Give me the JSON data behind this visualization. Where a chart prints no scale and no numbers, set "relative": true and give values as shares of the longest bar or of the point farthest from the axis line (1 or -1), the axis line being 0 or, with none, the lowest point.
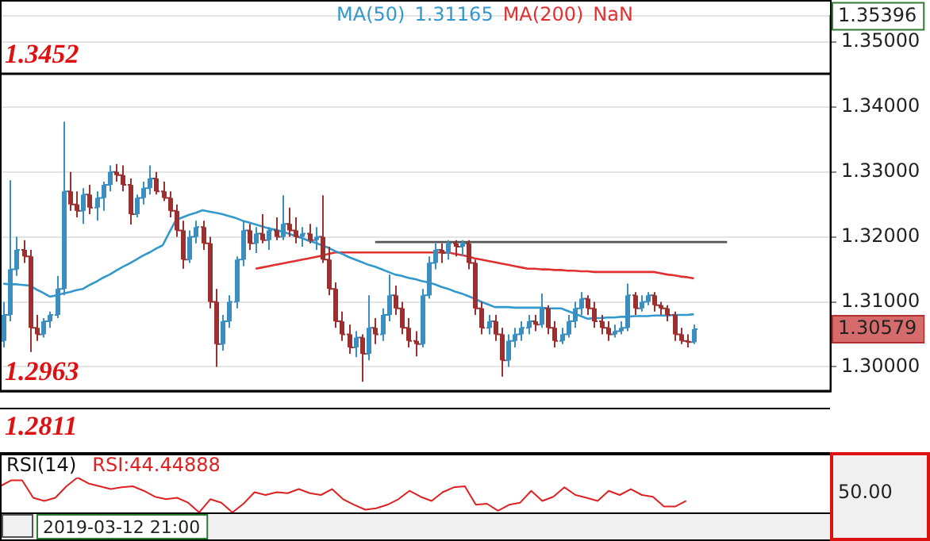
{
  "chart_data": [
    {
      "type": "candlestick",
      "categories": [
        null,
        null,
        null,
        null,
        null,
        null,
        null,
        null,
        null,
        null,
        null,
        null,
        null,
        null,
        null,
        null,
        null,
        null,
        null,
        null,
        null,
        null,
        null,
        null,
        null,
        null,
        null,
        null,
        null,
        null,
        null,
        null,
        null,
        null,
        null,
        null,
        null,
        null,
        null,
        null,
        null,
        null,
        null,
        null,
        null,
        null,
        null,
        null,
        null,
        null,
        null,
        null,
        null,
        null,
        null,
        null,
        null,
        null,
        null,
        null,
        null,
        null,
        null,
        null,
        null,
        null,
        null,
        null,
        null,
        null,
        null,
        null,
        null,
        null,
        null,
        null,
        null,
        null,
        null,
        null,
        null,
        null,
        null,
        null,
        null,
        null,
        null,
        null,
        null,
        null,
        null,
        null,
        null,
        null,
        null,
        null,
        null,
        null,
        null,
        null,
        null,
        null,
        null,
        null,
        null,
        null,
        null,
        null,
        null,
        null,
        null,
        null,
        null,
        null,
        null,
        null,
        null,
        null,
        null,
        null,
        null,
        null,
        null,
        null,
        null
      ],
      "ohlc": [
        [
          1.304,
          1.31,
          1.303,
          1.308
        ],
        [
          1.308,
          1.3287,
          1.307,
          1.315
        ],
        [
          1.315,
          1.32,
          1.314,
          1.318
        ],
        [
          1.318,
          1.3195,
          1.316,
          1.317
        ],
        [
          1.317,
          1.318,
          1.3023,
          1.306
        ],
        [
          1.306,
          1.308,
          1.304,
          1.305
        ],
        [
          1.305,
          1.3075,
          1.3045,
          1.307
        ],
        [
          1.307,
          1.3085,
          1.306,
          1.308
        ],
        [
          1.308,
          1.314,
          1.3075,
          1.312
        ],
        [
          1.312,
          1.3377,
          1.311,
          1.327
        ],
        [
          1.327,
          1.33,
          1.324,
          1.325
        ],
        [
          1.325,
          1.327,
          1.323,
          1.324
        ],
        [
          1.324,
          1.3275,
          1.322,
          1.3265
        ],
        [
          1.3265,
          1.328,
          1.3235,
          1.3245
        ],
        [
          1.3245,
          1.327,
          1.3225,
          1.326
        ],
        [
          1.326,
          1.3285,
          1.324,
          1.328
        ],
        [
          1.328,
          1.331,
          1.327,
          1.33
        ],
        [
          1.33,
          1.3312,
          1.3285,
          1.3295
        ],
        [
          1.3295,
          1.331,
          1.327,
          1.328
        ],
        [
          1.328,
          1.329,
          1.3219,
          1.3235
        ],
        [
          1.3235,
          1.3265,
          1.323,
          1.326
        ],
        [
          1.326,
          1.3285,
          1.325,
          1.3275
        ],
        [
          1.3275,
          1.331,
          1.3265,
          1.329
        ],
        [
          1.329,
          1.33,
          1.3265,
          1.327
        ],
        [
          1.327,
          1.3285,
          1.3255,
          1.326
        ],
        [
          1.326,
          1.327,
          1.323,
          1.324
        ],
        [
          1.324,
          1.325,
          1.32,
          1.321
        ],
        [
          1.321,
          1.3225,
          1.3151,
          1.3165
        ],
        [
          1.3165,
          1.321,
          1.316,
          1.32
        ],
        [
          1.32,
          1.3225,
          1.319,
          1.3215
        ],
        [
          1.3215,
          1.3225,
          1.318,
          1.319
        ],
        [
          1.319,
          1.32,
          1.309,
          1.31
        ],
        [
          1.31,
          1.312,
          1.3,
          1.3035
        ],
        [
          1.3035,
          1.308,
          1.3025,
          1.307
        ],
        [
          1.307,
          1.311,
          1.306,
          1.31
        ],
        [
          1.31,
          1.317,
          1.309,
          1.3165
        ],
        [
          1.3165,
          1.3225,
          1.3155,
          1.321
        ],
        [
          1.321,
          1.322,
          1.318,
          1.319
        ],
        [
          1.319,
          1.3215,
          1.3175,
          1.3205
        ],
        [
          1.3205,
          1.3235,
          1.319,
          1.3195
        ],
        [
          1.3195,
          1.3215,
          1.318,
          1.321
        ],
        [
          1.321,
          1.323,
          1.3195,
          1.32
        ],
        [
          1.32,
          1.3264,
          1.3195,
          1.322
        ],
        [
          1.322,
          1.3245,
          1.32,
          1.321
        ],
        [
          1.321,
          1.323,
          1.319,
          1.32
        ],
        [
          1.32,
          1.3215,
          1.3185,
          1.3205
        ],
        [
          1.3205,
          1.322,
          1.319,
          1.3195
        ],
        [
          1.3195,
          1.3215,
          1.318,
          1.32
        ],
        [
          1.32,
          1.3264,
          1.316,
          1.3165
        ],
        [
          1.3165,
          1.3185,
          1.311,
          1.312
        ],
        [
          1.312,
          1.313,
          1.306,
          1.307
        ],
        [
          1.307,
          1.3085,
          1.304,
          1.305
        ],
        [
          1.305,
          1.3065,
          1.302,
          1.303
        ],
        [
          1.303,
          1.3055,
          1.3015,
          1.3045
        ],
        [
          1.3045,
          1.305,
          1.2977,
          1.302
        ],
        [
          1.302,
          1.311,
          1.301,
          1.306
        ],
        [
          1.306,
          1.3075,
          1.3035,
          1.305
        ],
        [
          1.305,
          1.309,
          1.304,
          1.308
        ],
        [
          1.308,
          1.3142,
          1.307,
          1.311
        ],
        [
          1.311,
          1.3125,
          1.308,
          1.309
        ],
        [
          1.309,
          1.31,
          1.305,
          1.306
        ],
        [
          1.306,
          1.3075,
          1.303,
          1.304
        ],
        [
          1.304,
          1.3055,
          1.3016,
          1.3035
        ],
        [
          1.3035,
          1.312,
          1.303,
          1.311
        ],
        [
          1.311,
          1.317,
          1.3105,
          1.316
        ],
        [
          1.316,
          1.319,
          1.315,
          1.318
        ],
        [
          1.318,
          1.319,
          1.316,
          1.3175
        ],
        [
          1.3175,
          1.3195,
          1.3165,
          1.319
        ],
        [
          1.319,
          1.3195,
          1.317,
          1.3185
        ],
        [
          1.3185,
          1.3195,
          1.317,
          1.319
        ],
        [
          1.319,
          1.3195,
          1.315,
          1.316
        ],
        [
          1.316,
          1.3165,
          1.308,
          1.309
        ],
        [
          1.309,
          1.31,
          1.305,
          1.306
        ],
        [
          1.306,
          1.308,
          1.305,
          1.307
        ],
        [
          1.307,
          1.308,
          1.304,
          1.305
        ],
        [
          1.305,
          1.306,
          1.2985,
          1.301
        ],
        [
          1.301,
          1.305,
          1.3,
          1.304
        ],
        [
          1.304,
          1.306,
          1.303,
          1.305
        ],
        [
          1.305,
          1.307,
          1.304,
          1.306
        ],
        [
          1.306,
          1.308,
          1.305,
          1.307
        ],
        [
          1.307,
          1.308,
          1.3055,
          1.3065
        ],
        [
          1.3065,
          1.3113,
          1.306,
          1.309
        ],
        [
          1.309,
          1.3095,
          1.305,
          1.306
        ],
        [
          1.306,
          1.307,
          1.303,
          1.304
        ],
        [
          1.304,
          1.306,
          1.3035,
          1.305
        ],
        [
          1.305,
          1.308,
          1.3045,
          1.307
        ],
        [
          1.307,
          1.31,
          1.306,
          1.309
        ],
        [
          1.309,
          1.3115,
          1.308,
          1.3105
        ],
        [
          1.3105,
          1.311,
          1.308,
          1.309
        ],
        [
          1.309,
          1.31,
          1.306,
          1.307
        ],
        [
          1.307,
          1.308,
          1.305,
          1.306
        ],
        [
          1.306,
          1.307,
          1.304,
          1.305
        ],
        [
          1.305,
          1.3065,
          1.3045,
          1.3055
        ],
        [
          1.3055,
          1.307,
          1.305,
          1.306
        ],
        [
          1.306,
          1.3128,
          1.3055,
          1.311
        ],
        [
          1.311,
          1.3115,
          1.308,
          1.309
        ],
        [
          1.309,
          1.311,
          1.3085,
          1.31
        ],
        [
          1.31,
          1.3115,
          1.3095,
          1.311
        ],
        [
          1.311,
          1.3115,
          1.3085,
          1.3095
        ],
        [
          1.3095,
          1.31,
          1.308,
          1.309
        ],
        [
          1.309,
          1.3095,
          1.307,
          1.308
        ],
        [
          1.308,
          1.3085,
          1.304,
          1.305
        ],
        [
          1.305,
          1.306,
          1.3035,
          1.304
        ],
        [
          1.304,
          1.305,
          1.303,
          1.3038
        ],
        [
          1.3038,
          1.3065,
          1.3035,
          1.3058
        ],
        null,
        null,
        null,
        null,
        null,
        null,
        null,
        null,
        null,
        null,
        null,
        null,
        null,
        null,
        null,
        null,
        null,
        null,
        null,
        null
      ],
      "colors": [
        "#3a8fc0",
        "#3a8fc0",
        "#3a8fc0",
        "#9a3030",
        "#9a3030",
        "#9a3030",
        "#3a8fc0",
        "#3a8fc0",
        "#3a8fc0",
        "#3a8fc0",
        "#9a3030",
        "#9a3030",
        "#3a8fc0",
        "#9a3030",
        "#3a8fc0",
        "#3a8fc0",
        "#3a8fc0",
        "#9a3030",
        "#9a3030",
        "#9a3030",
        "#3a8fc0",
        "#3a8fc0",
        "#3a8fc0",
        "#9a3030",
        "#9a3030",
        "#9a3030",
        "#9a3030",
        "#9a3030",
        "#3a8fc0",
        "#3a8fc0",
        "#9a3030",
        "#9a3030",
        "#9a3030",
        "#3a8fc0",
        "#3a8fc0",
        "#3a8fc0",
        "#3a8fc0",
        "#9a3030",
        "#3a8fc0",
        "#9a3030",
        "#3a8fc0",
        "#9a3030",
        "#3a8fc0",
        "#9a3030",
        "#9a3030",
        "#3a8fc0",
        "#9a3030",
        "#3a8fc0",
        "#9a3030",
        "#9a3030",
        "#9a3030",
        "#9a3030",
        "#9a3030",
        "#3a8fc0",
        "#9a3030",
        "#3a8fc0",
        "#9a3030",
        "#3a8fc0",
        "#3a8fc0",
        "#9a3030",
        "#9a3030",
        "#9a3030",
        "#9a3030",
        "#3a8fc0",
        "#3a8fc0",
        "#3a8fc0",
        "#9a3030",
        "#3a8fc0",
        "#9a3030",
        "#3a8fc0",
        "#9a3030",
        "#9a3030",
        "#9a3030",
        "#3a8fc0",
        "#9a3030",
        "#9a3030",
        "#3a8fc0",
        "#3a8fc0",
        "#3a8fc0",
        "#3a8fc0",
        "#9a3030",
        "#3a8fc0",
        "#9a3030",
        "#9a3030",
        "#3a8fc0",
        "#3a8fc0",
        "#3a8fc0",
        "#3a8fc0",
        "#9a3030",
        "#9a3030",
        "#9a3030",
        "#9a3030",
        "#3a8fc0",
        "#3a8fc0",
        "#3a8fc0",
        "#9a3030",
        "#3a8fc0",
        "#3a8fc0",
        "#9a3030",
        "#9a3030",
        "#9a3030",
        "#9a3030",
        "#9a3030",
        "#9a3030",
        "#3a8fc0",
        null,
        null,
        null,
        null,
        null,
        null,
        null,
        null,
        null,
        null,
        null,
        null,
        null,
        null,
        null,
        null,
        null,
        null,
        null,
        null
      ],
      "series": [
        {
          "type": "line",
          "name": "MA(50)",
          "color": "#3399cc",
          "values": [
            1.3128,
            1.3127,
            1.3127,
            1.3126,
            1.3125,
            1.3119,
            1.3114,
            1.3108,
            1.311,
            1.3113,
            1.3115,
            1.3118,
            1.312,
            1.3126,
            1.3131,
            1.3137,
            1.3142,
            1.3148,
            1.3154,
            1.3159,
            1.3165,
            1.3171,
            1.3176,
            1.3182,
            1.3187,
            1.3207,
            1.3226,
            1.323,
            1.3234,
            1.3237,
            1.3241,
            1.3239,
            1.3237,
            1.3235,
            1.3232,
            1.3229,
            1.3225,
            1.3222,
            1.3219,
            1.3216,
            1.3213,
            1.3211,
            1.3208,
            1.3205,
            1.3201,
            1.3198,
            1.3194,
            1.3191,
            1.3187,
            1.3183,
            1.3178,
            1.3174,
            1.3169,
            1.3165,
            1.3161,
            1.3157,
            1.3154,
            1.315,
            1.3146,
            1.3142,
            1.314,
            1.3137,
            1.3135,
            1.3132,
            1.313,
            1.3127,
            1.3123,
            1.312,
            1.3116,
            1.3113,
            1.3109,
            1.3105,
            1.31,
            1.3096,
            1.3092,
            1.3092,
            1.3092,
            1.3091,
            1.3091,
            1.3091,
            1.3091,
            1.3091,
            1.309,
            1.309,
            1.309,
            1.3086,
            1.3082,
            1.3078,
            1.3074,
            1.3075,
            1.3075,
            1.3076,
            1.3076,
            1.3077,
            1.3077,
            1.3078,
            1.3078,
            1.3078,
            1.3079,
            1.3079,
            1.3079,
            1.308,
            1.308,
            1.308,
            1.3081,
            null,
            null,
            null,
            null,
            null,
            null,
            null,
            null,
            null,
            null,
            null,
            null,
            null,
            null,
            null,
            null,
            null,
            null,
            null,
            null
          ]
        },
        {
          "type": "line",
          "name": "MA(200)",
          "color": "#e03030",
          "values": [
            null,
            null,
            null,
            null,
            null,
            null,
            null,
            null,
            null,
            null,
            null,
            null,
            null,
            null,
            null,
            null,
            null,
            null,
            null,
            null,
            null,
            null,
            null,
            null,
            null,
            null,
            null,
            null,
            null,
            null,
            null,
            null,
            null,
            null,
            null,
            null,
            null,
            null,
            1.3151,
            1.3153,
            1.3155,
            1.3157,
            1.3159,
            1.3161,
            1.3163,
            1.3165,
            1.3167,
            1.3169,
            1.3171,
            1.3174,
            1.3176,
            1.3176,
            1.3176,
            1.3176,
            1.3176,
            1.3176,
            1.3176,
            1.3176,
            1.3176,
            1.3176,
            1.3176,
            1.3176,
            1.3176,
            1.3176,
            1.3176,
            1.3176,
            1.3176,
            1.3176,
            1.3174,
            1.3172,
            1.317,
            1.3167,
            1.3165,
            1.3163,
            1.3161,
            1.3159,
            1.3157,
            1.3155,
            1.3153,
            1.3151,
            1.3151,
            1.315,
            1.315,
            1.3149,
            1.3149,
            1.3148,
            1.3148,
            1.3147,
            1.3147,
            1.3146,
            1.3146,
            1.3146,
            1.3146,
            1.3146,
            1.3146,
            1.3146,
            1.3146,
            1.3146,
            1.3146,
            1.3144,
            1.3142,
            1.3141,
            1.3139,
            1.3138,
            1.3136,
            null,
            null,
            null,
            null,
            null,
            null,
            null,
            null,
            null,
            null,
            null,
            null,
            null,
            null,
            null,
            null,
            null,
            null,
            null,
            null
          ]
        },
        {
          "type": "line",
          "color": "#555555",
          "values": [
            null,
            null,
            null,
            null,
            null,
            null,
            null,
            null,
            null,
            null,
            null,
            null,
            null,
            null,
            null,
            null,
            null,
            null,
            null,
            null,
            null,
            null,
            null,
            null,
            null,
            null,
            null,
            null,
            null,
            null,
            null,
            null,
            null,
            null,
            null,
            null,
            null,
            null,
            null,
            null,
            null,
            null,
            null,
            null,
            null,
            null,
            null,
            null,
            null,
            null,
            null,
            null,
            null,
            null,
            null,
            null,
            1.3192,
            1.3192,
            1.3192,
            1.3192,
            1.3192,
            1.3192,
            1.3192,
            1.3192,
            1.3192,
            1.3192,
            1.3192,
            1.3192,
            1.3192,
            1.3192,
            1.3192,
            1.3192,
            1.3192,
            1.3192,
            1.3192,
            1.3192,
            1.3192,
            1.3192,
            1.3192,
            1.3192,
            1.3192,
            1.3192,
            1.3192,
            1.3192,
            1.3192,
            1.3192,
            1.3192,
            1.3192,
            1.3192,
            1.3192,
            1.3192,
            1.3192,
            1.3192,
            1.3192,
            1.3192,
            1.3192,
            1.3192,
            1.3192,
            1.3192,
            1.3192,
            1.3192,
            1.3192,
            1.3192,
            1.3192,
            1.3192,
            1.3192,
            1.3192,
            1.3192,
            1.3192,
            1.3192,
            null,
            null,
            null,
            null,
            null,
            null,
            null,
            null,
            null,
            null,
            null,
            null,
            null,
            null,
            null
          ]
        }
      ],
      "ylim": [
        1.2962,
        1.35396
      ],
      "yticks": [
        {
          "value": 1.3,
          "label": "1.30000"
        },
        {
          "value": 1.31,
          "label": "1.31000"
        },
        {
          "value": 1.32,
          "label": "1.32000"
        },
        {
          "value": 1.33,
          "label": "1.33000"
        },
        {
          "value": 1.34,
          "label": "1.34000"
        },
        {
          "value": 1.35,
          "label": "1.35000"
        },
        {
          "value": 1.35396,
          "label": "1.35396"
        }
      ],
      "ref_lines": [
        {
          "axis": "y",
          "value": 1.3452,
          "label": "1.3452",
          "color": "#000000"
        },
        {
          "axis": "y",
          "value": 1.2963,
          "label": "1.2963",
          "color": "#000000"
        }
      ],
      "annotations": [
        "1.31165",
        "NaN",
        "1.2811",
        "1.30579"
      ],
      "grid": "y",
      "legend": false,
      "tick_labels": "y"
    },
    {
      "type": "line",
      "title": "RSI(14)",
      "relative": true,
      "categories": [
        null,
        null,
        null,
        null,
        null,
        null,
        null,
        null,
        null,
        null,
        null,
        null,
        null,
        null,
        null,
        null,
        null,
        null,
        null,
        null,
        null,
        null,
        null,
        null,
        null,
        null,
        null,
        null,
        null,
        null,
        null,
        null,
        null,
        null,
        null,
        null,
        null,
        null,
        null,
        null,
        null,
        null,
        null,
        null,
        null,
        null,
        null,
        null,
        null,
        null,
        null,
        null,
        null,
        null,
        null,
        null,
        null,
        null,
        null,
        null,
        null,
        null,
        null,
        null,
        null,
        null,
        null,
        null,
        null,
        null,
        null,
        null,
        null,
        null,
        null,
        null
      ],
      "series": [
        {
          "name": "RSI:44.44888",
          "color": "#dd2222",
          "values": [
            0.75,
            0.92,
            0.92,
            0.42,
            0.33,
            0.42,
            0.75,
            1,
            0.83,
            0.75,
            0.67,
            0.72,
            0.75,
            0.62,
            0.45,
            0.38,
            0.42,
            0.28,
            0,
            0.38,
            0.28,
            0,
            0.25,
            0.58,
            0.5,
            0.58,
            0.55,
            0.67,
            0.55,
            0.5,
            0.67,
            0.38,
            0.22,
            0.08,
            0.12,
            0.22,
            0.38,
            0.62,
            0.45,
            0.33,
            0.58,
            0.72,
            0.75,
            0.22,
            0.25,
            0.05,
            0.22,
            0.28,
            0.62,
            0.33,
            0.45,
            0.72,
            0.5,
            0.42,
            0.33,
            0.62,
            0.5,
            0.67,
            0.5,
            0.45,
            0.17,
            0.17,
            0.33,
            null,
            null,
            null,
            null,
            null,
            null,
            null,
            null,
            null,
            null,
            null,
            null,
            null
          ]
        }
      ],
      "annotations": [
        "50.00",
        "2019-03-12 21:00"
      ],
      "grid": false,
      "legend": false,
      "tick_labels": false
    }
  ]
}
